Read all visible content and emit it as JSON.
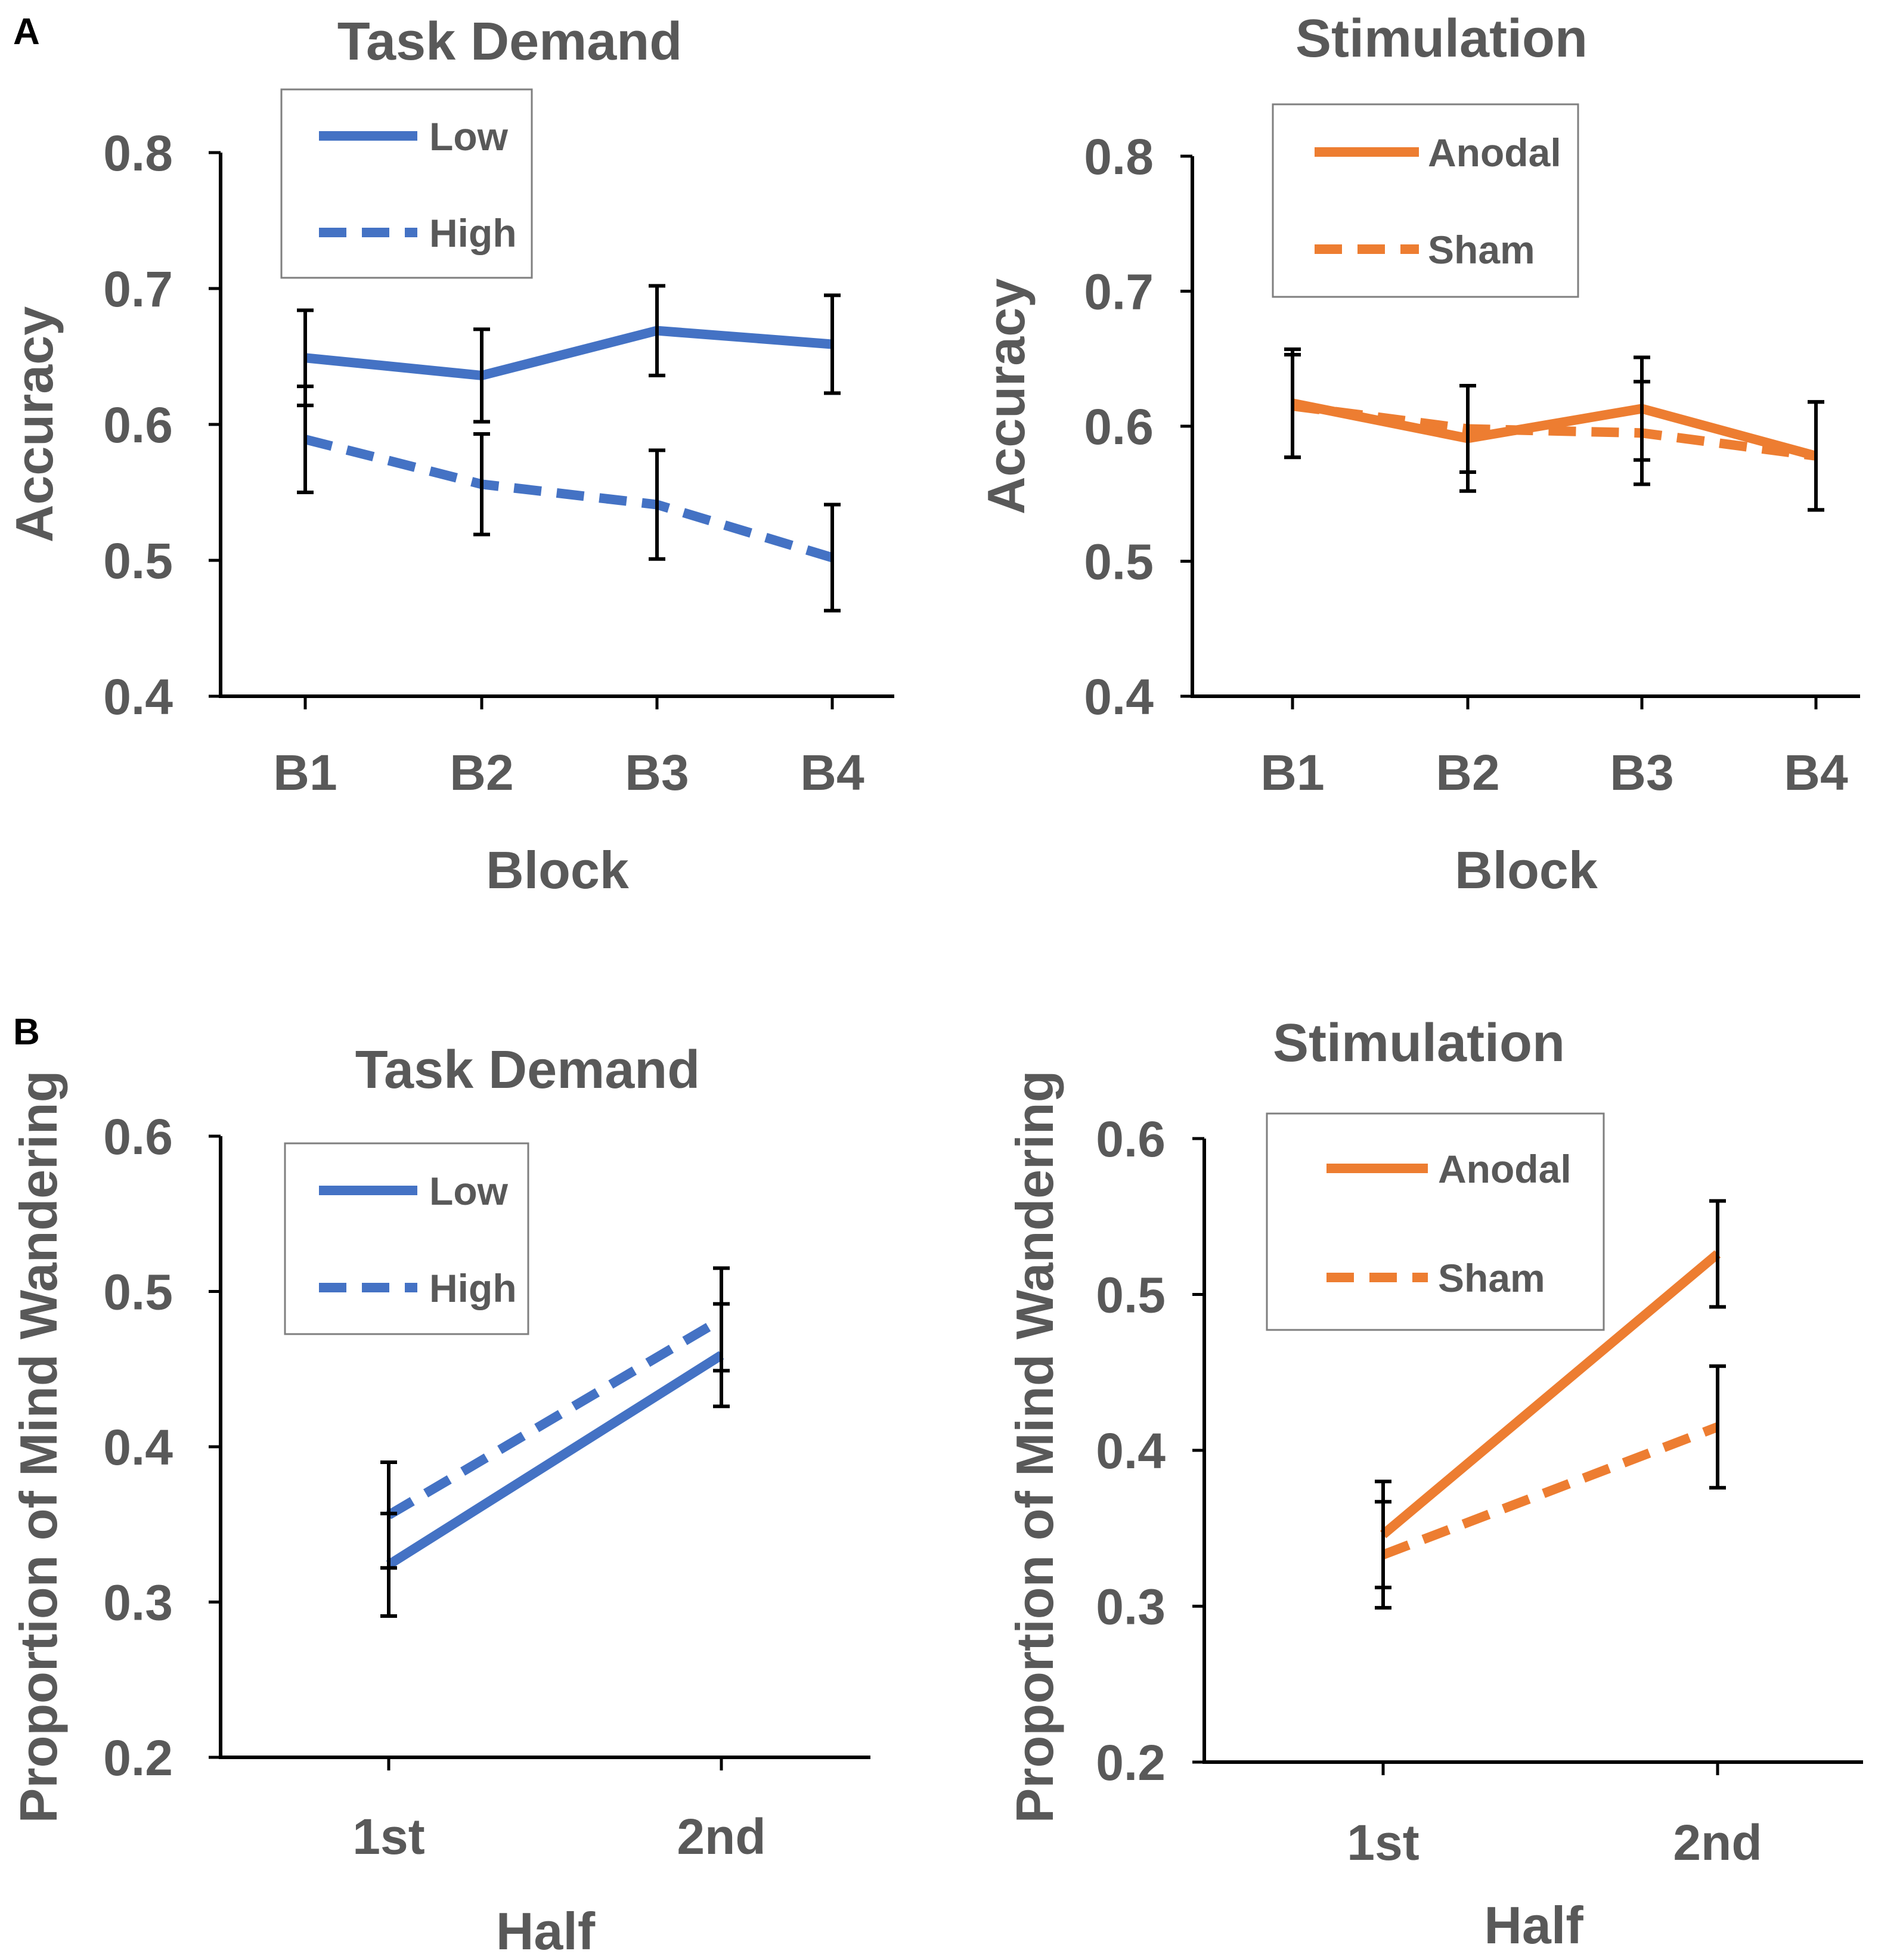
{
  "panel_labels": [
    "A",
    "B"
  ],
  "colors": {
    "text": "#595959",
    "axis": "#000000",
    "blue": "#4472C4",
    "orange": "#ED7D31",
    "errorbar": "#000000"
  },
  "chart_data": [
    {
      "type": "line",
      "panel": "A",
      "title": "Task Demand",
      "xlabel": "Block",
      "ylabel": "Accuracy",
      "categories": [
        "B1",
        "B2",
        "B3",
        "B4"
      ],
      "yticks": [
        "0.4",
        "0.5",
        "0.6",
        "0.7",
        "0.8"
      ],
      "ylim": [
        0.4,
        0.8
      ],
      "color": "#4472C4",
      "legend_position": "top-left",
      "series": [
        {
          "name": "Low",
          "style": "solid",
          "values": [
            0.649,
            0.636,
            0.669,
            0.659
          ],
          "errors": [
            0.035,
            0.034,
            0.033,
            0.036
          ]
        },
        {
          "name": "High",
          "style": "dashed",
          "values": [
            0.589,
            0.556,
            0.541,
            0.502
          ],
          "errors": [
            0.039,
            0.037,
            0.04,
            0.039
          ]
        }
      ]
    },
    {
      "type": "line",
      "panel": "A",
      "title": "Stimulation",
      "xlabel": "Block",
      "ylabel": "Accuracy",
      "categories": [
        "B1",
        "B2",
        "B3",
        "B4"
      ],
      "yticks": [
        "0.4",
        "0.5",
        "0.6",
        "0.7",
        "0.8"
      ],
      "ylim": [
        0.4,
        0.8
      ],
      "color": "#ED7D31",
      "legend_position": "top-left",
      "series": [
        {
          "name": "Anodal",
          "style": "solid",
          "values": [
            0.617,
            0.591,
            0.613,
            0.578
          ],
          "errors": [
            0.04,
            0.039,
            0.038,
            0.04
          ]
        },
        {
          "name": "Sham",
          "style": "dashed",
          "values": [
            0.615,
            0.598,
            0.595,
            0.578
          ],
          "errors": [
            0.038,
            0.032,
            0.038,
            0.04
          ]
        }
      ]
    },
    {
      "type": "line",
      "panel": "B",
      "title": "Task Demand",
      "xlabel": "Half",
      "ylabel": "Proportion of Mind Wandering",
      "categories": [
        "1st",
        "2nd"
      ],
      "yticks": [
        "0.2",
        "0.3",
        "0.4",
        "0.5",
        "0.6"
      ],
      "ylim": [
        0.2,
        0.6
      ],
      "color": "#4472C4",
      "legend_position": "top-center",
      "series": [
        {
          "name": "Low",
          "style": "solid",
          "values": [
            0.324,
            0.459
          ],
          "errors": [
            0.033,
            0.033
          ]
        },
        {
          "name": "High",
          "style": "dashed",
          "values": [
            0.356,
            0.482
          ],
          "errors": [
            0.034,
            0.033
          ]
        }
      ]
    },
    {
      "type": "line",
      "panel": "B",
      "title": "Stimulation",
      "xlabel": "Half",
      "ylabel": "Proportion of Mind Wandering",
      "categories": [
        "1st",
        "2nd"
      ],
      "yticks": [
        "0.2",
        "0.3",
        "0.4",
        "0.5",
        "0.6"
      ],
      "ylim": [
        0.2,
        0.6
      ],
      "color": "#ED7D31",
      "legend_position": "top-left",
      "series": [
        {
          "name": "Anodal",
          "style": "solid",
          "values": [
            0.346,
            0.526
          ],
          "errors": [
            0.034,
            0.034
          ]
        },
        {
          "name": "Sham",
          "style": "dashed",
          "values": [
            0.333,
            0.415
          ],
          "errors": [
            0.034,
            0.039
          ]
        }
      ]
    }
  ]
}
